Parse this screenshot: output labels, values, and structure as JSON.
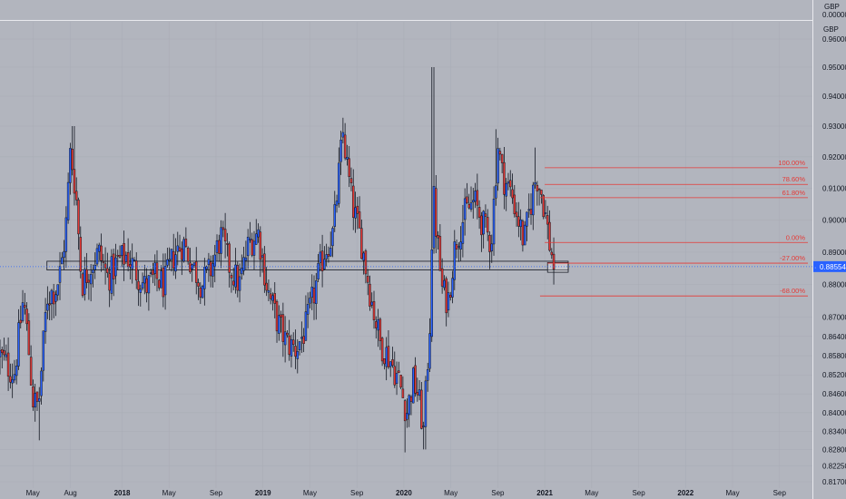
{
  "top_bar": {
    "currency_label": "GBP",
    "currency_value": "0.00000"
  },
  "chart_data": {
    "type": "candlestick",
    "symbol_quote_currency": "GBP",
    "ylim": [
      0.817,
      0.965
    ],
    "y_ticks": [
      {
        "label": "0.96000",
        "v": 0.96
      },
      {
        "label": "0.95000",
        "v": 0.95
      },
      {
        "label": "0.94000",
        "v": 0.94
      },
      {
        "label": "0.93000",
        "v": 0.93
      },
      {
        "label": "0.92000",
        "v": 0.92
      },
      {
        "label": "0.91000",
        "v": 0.91
      },
      {
        "label": "0.90000",
        "v": 0.9
      },
      {
        "label": "0.89000",
        "v": 0.89
      },
      {
        "label": "0.88000",
        "v": 0.88
      },
      {
        "label": "0.87000",
        "v": 0.87
      },
      {
        "label": "0.86400",
        "v": 0.864
      },
      {
        "label": "0.85800",
        "v": 0.858
      },
      {
        "label": "0.85200",
        "v": 0.852
      },
      {
        "label": "0.84600",
        "v": 0.846
      },
      {
        "label": "0.84000",
        "v": 0.84
      },
      {
        "label": "0.83400",
        "v": 0.834
      },
      {
        "label": "0.82800",
        "v": 0.828
      },
      {
        "label": "0.82250",
        "v": 0.8225
      },
      {
        "label": "0.81700",
        "v": 0.817
      }
    ],
    "x_ticks": [
      {
        "label": "May",
        "t": 0.0
      },
      {
        "label": "Aug",
        "t": 4.0
      },
      {
        "label": "2018",
        "t": 9.5
      },
      {
        "label": "May",
        "t": 14.5
      },
      {
        "label": "Sep",
        "t": 19.5
      },
      {
        "label": "2019",
        "t": 24.5
      },
      {
        "label": "May",
        "t": 29.5
      },
      {
        "label": "Sep",
        "t": 34.5
      },
      {
        "label": "2020",
        "t": 39.5
      },
      {
        "label": "May",
        "t": 44.5
      },
      {
        "label": "Sep",
        "t": 49.5
      },
      {
        "label": "2021",
        "t": 54.5
      },
      {
        "label": "May",
        "t": 59.5
      },
      {
        "label": "Sep",
        "t": 64.5
      },
      {
        "label": "2022",
        "t": 69.5
      },
      {
        "label": "May",
        "t": 74.5
      },
      {
        "label": "Sep",
        "t": 79.5
      }
    ],
    "time_range": [
      -3.5,
      83.0
    ],
    "last_price": {
      "value": 0.88554,
      "label": "0.88554"
    },
    "colors": {
      "up": "#2962ff",
      "down": "#e53935",
      "wick": "#131722",
      "fib_line": "#e53935",
      "price_line": "#2962ff",
      "background": "#b2b5be",
      "zone_border": "#131722"
    },
    "zone": {
      "t_start": 1.5,
      "t_end": 57.0,
      "low": 0.8845,
      "high": 0.8872
    },
    "small_box": {
      "t_start": 54.8,
      "t_end": 57.0,
      "low": 0.8838,
      "high": 0.8868
    },
    "fib_levels": [
      {
        "label": "100.00%",
        "v": 0.9165,
        "t_start": 54.5
      },
      {
        "label": "78.60%",
        "v": 0.9112,
        "t_start": 54.5
      },
      {
        "label": "61.80%",
        "v": 0.907,
        "t_start": 54.0
      },
      {
        "label": "0.00%",
        "v": 0.893,
        "t_start": 54.5
      },
      {
        "label": "-27.00%",
        "v": 0.8866,
        "t_start": 54.8
      },
      {
        "label": "-68.00%",
        "v": 0.8765,
        "t_start": 54.0
      }
    ],
    "close_anchors": [
      [
        -3.5,
        0.858
      ],
      [
        -3,
        0.856
      ],
      [
        -2,
        0.852
      ],
      [
        -1,
        0.876
      ],
      [
        -0.5,
        0.862
      ],
      [
        0,
        0.844
      ],
      [
        0.6,
        0.842
      ],
      [
        1.5,
        0.876
      ],
      [
        2.5,
        0.879
      ],
      [
        3,
        0.885
      ],
      [
        3.5,
        0.897
      ],
      [
        4.0,
        0.922
      ],
      [
        4.6,
        0.908
      ],
      [
        5.2,
        0.88
      ],
      [
        6,
        0.885
      ],
      [
        7,
        0.89
      ],
      [
        8,
        0.882
      ],
      [
        9,
        0.887
      ],
      [
        10,
        0.889
      ],
      [
        11,
        0.884
      ],
      [
        12,
        0.879
      ],
      [
        13,
        0.882
      ],
      [
        14,
        0.88
      ],
      [
        15,
        0.889
      ],
      [
        16,
        0.893
      ],
      [
        17,
        0.886
      ],
      [
        18,
        0.88
      ],
      [
        19,
        0.885
      ],
      [
        20,
        0.895
      ],
      [
        21,
        0.885
      ],
      [
        22,
        0.88
      ],
      [
        23,
        0.893
      ],
      [
        24,
        0.896
      ],
      [
        25,
        0.878
      ],
      [
        26,
        0.869
      ],
      [
        27,
        0.862
      ],
      [
        28,
        0.86
      ],
      [
        29,
        0.866
      ],
      [
        30,
        0.878
      ],
      [
        31,
        0.89
      ],
      [
        32,
        0.896
      ],
      [
        33,
        0.928
      ],
      [
        33.5,
        0.916
      ],
      [
        34,
        0.905
      ],
      [
        35,
        0.893
      ],
      [
        36,
        0.876
      ],
      [
        37,
        0.862
      ],
      [
        38,
        0.857
      ],
      [
        39,
        0.85
      ],
      [
        39.8,
        0.84
      ],
      [
        40.5,
        0.85
      ],
      [
        41,
        0.846
      ],
      [
        41.6,
        0.834
      ],
      [
        42.3,
        0.87
      ],
      [
        42.6,
        0.91
      ],
      [
        43,
        0.895
      ],
      [
        43.6,
        0.878
      ],
      [
        44.2,
        0.875
      ],
      [
        45,
        0.893
      ],
      [
        46,
        0.902
      ],
      [
        47,
        0.906
      ],
      [
        48,
        0.898
      ],
      [
        48.8,
        0.893
      ],
      [
        49.5,
        0.924
      ],
      [
        50,
        0.914
      ],
      [
        51,
        0.908
      ],
      [
        51.7,
        0.9
      ],
      [
        52.3,
        0.893
      ],
      [
        53,
        0.905
      ],
      [
        53.6,
        0.914
      ],
      [
        54.2,
        0.908
      ],
      [
        54.6,
        0.901
      ],
      [
        55.0,
        0.893
      ],
      [
        55.5,
        0.8855
      ]
    ],
    "spikes": [
      {
        "t": 42.6,
        "high": 0.95
      },
      {
        "t": 33.2,
        "high": 0.931
      },
      {
        "t": 49.3,
        "high": 0.929
      },
      {
        "t": 4.3,
        "high": 0.93
      },
      {
        "t": 53.5,
        "high": 0.923
      },
      {
        "t": 39.6,
        "low": 0.827
      },
      {
        "t": 41.7,
        "low": 0.828
      },
      {
        "t": 0.7,
        "low": 0.831
      },
      {
        "t": 55.4,
        "low": 0.88
      }
    ]
  }
}
